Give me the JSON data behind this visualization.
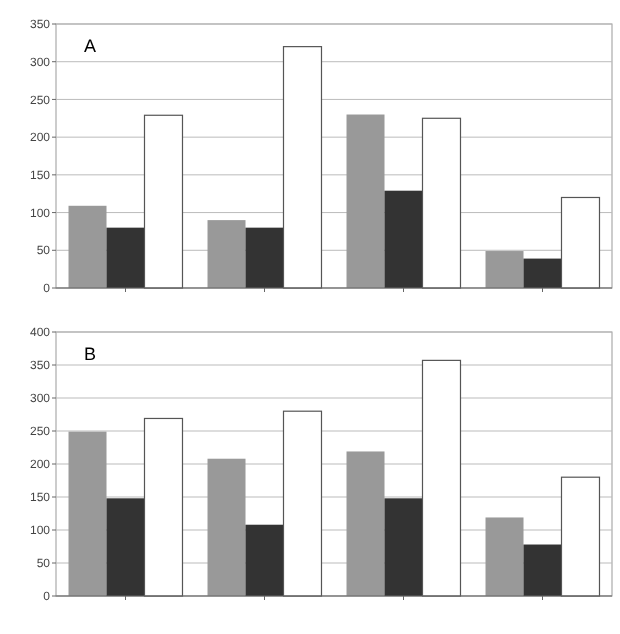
{
  "chart_data": [
    {
      "type": "bar",
      "title": "A",
      "categories": [
        null,
        null,
        null,
        null
      ],
      "series": [
        {
          "color": "#999999",
          "values": [
            109,
            90,
            230,
            49
          ]
        },
        {
          "color": "#333333",
          "values": [
            80,
            80,
            129,
            39
          ]
        },
        {
          "color": "#ffffff",
          "values": [
            229,
            320,
            225,
            120
          ]
        }
      ],
      "ylim": [
        0,
        350
      ],
      "yticks": [
        0,
        50,
        100,
        150,
        200,
        250,
        300,
        350
      ],
      "grid": "y"
    },
    {
      "type": "bar",
      "title": "B",
      "categories": [
        null,
        null,
        null,
        null
      ],
      "series": [
        {
          "color": "#999999",
          "values": [
            249,
            208,
            219,
            119
          ]
        },
        {
          "color": "#333333",
          "values": [
            148,
            108,
            148,
            78
          ]
        },
        {
          "color": "#ffffff",
          "values": [
            269,
            280,
            357,
            180
          ]
        }
      ],
      "ylim": [
        0,
        400
      ],
      "yticks": [
        0,
        50,
        100,
        150,
        200,
        250,
        300,
        350,
        400
      ],
      "grid": "y"
    }
  ]
}
